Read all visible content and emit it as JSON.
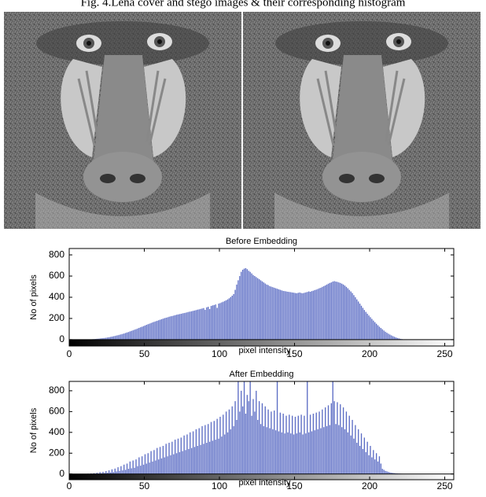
{
  "caption": "Fig. 4.Lena cover and stego images & their corresponding histogram",
  "chart_data": [
    {
      "type": "histogram",
      "title": "Before Embedding",
      "x_label": "pixel intensity",
      "y_label": "No of pixels",
      "color": "#5b6cc4",
      "xlim": [
        0,
        256
      ],
      "ylim": [
        -60,
        860
      ],
      "xticks": [
        0,
        50,
        100,
        150,
        200,
        250
      ],
      "yticks": [
        0,
        200,
        400,
        600,
        800
      ],
      "bins": [
        0,
        1,
        2,
        3,
        4,
        5,
        6,
        7,
        8,
        9,
        10,
        11,
        12,
        13,
        14,
        15,
        16,
        17,
        18,
        19,
        20,
        21,
        22,
        23,
        24,
        25,
        26,
        27,
        28,
        29,
        30,
        31,
        32,
        33,
        34,
        35,
        36,
        37,
        38,
        39,
        40,
        41,
        42,
        43,
        44,
        45,
        46,
        47,
        48,
        49,
        50,
        51,
        52,
        53,
        54,
        55,
        56,
        57,
        58,
        59,
        60,
        61,
        62,
        63,
        64,
        65,
        66,
        67,
        68,
        69,
        70,
        71,
        72,
        73,
        74,
        75,
        76,
        77,
        78,
        79,
        80,
        81,
        82,
        83,
        84,
        85,
        86,
        87,
        88,
        89,
        90,
        91,
        92,
        93,
        94,
        95,
        96,
        97,
        98,
        99,
        100,
        101,
        102,
        103,
        104,
        105,
        106,
        107,
        108,
        109,
        110,
        111,
        112,
        113,
        114,
        115,
        116,
        117,
        118,
        119,
        120,
        121,
        122,
        123,
        124,
        125,
        126,
        127,
        128,
        129,
        130,
        131,
        132,
        133,
        134,
        135,
        136,
        137,
        138,
        139,
        140,
        141,
        142,
        143,
        144,
        145,
        146,
        147,
        148,
        149,
        150,
        151,
        152,
        153,
        154,
        155,
        156,
        157,
        158,
        159,
        160,
        161,
        162,
        163,
        164,
        165,
        166,
        167,
        168,
        169,
        170,
        171,
        172,
        173,
        174,
        175,
        176,
        177,
        178,
        179,
        180,
        181,
        182,
        183,
        184,
        185,
        186,
        187,
        188,
        189,
        190,
        191,
        192,
        193,
        194,
        195,
        196,
        197,
        198,
        199,
        200,
        201,
        202,
        203,
        204,
        205,
        206,
        207,
        208,
        209,
        210,
        211,
        212,
        213,
        214,
        215,
        216,
        217,
        218,
        219,
        220,
        221,
        222,
        223,
        224,
        225,
        226,
        227,
        228,
        229,
        230,
        231,
        232,
        233,
        234,
        235,
        236,
        237,
        238,
        239,
        240,
        241,
        242,
        243,
        244,
        245,
        246,
        247,
        248,
        249,
        250,
        251,
        252,
        253,
        254,
        255,
        256
      ],
      "values": [
        0,
        0,
        0,
        0,
        0,
        0,
        0,
        0,
        0,
        0,
        0,
        1,
        2,
        2,
        3,
        4,
        5,
        6,
        8,
        9,
        11,
        13,
        14,
        16,
        18,
        21,
        23,
        26,
        29,
        32,
        35,
        39,
        42,
        46,
        50,
        54,
        58,
        63,
        68,
        72,
        78,
        83,
        88,
        94,
        99,
        105,
        111,
        117,
        122,
        128,
        134,
        140,
        146,
        151,
        157,
        163,
        168,
        173,
        178,
        183,
        188,
        193,
        198,
        203,
        207,
        211,
        216,
        220,
        223,
        227,
        231,
        235,
        238,
        241,
        244,
        248,
        251,
        254,
        258,
        262,
        265,
        268,
        272,
        275,
        279,
        283,
        286,
        290,
        294,
        298,
        281,
        305,
        310,
        289,
        318,
        323,
        327,
        332,
        300,
        340,
        345,
        352,
        358,
        365,
        372,
        380,
        390,
        402,
        415,
        430,
        470,
        520,
        560,
        600,
        640,
        660,
        670,
        675,
        665,
        650,
        640,
        625,
        610,
        600,
        590,
        580,
        570,
        560,
        550,
        540,
        530,
        520,
        515,
        505,
        500,
        495,
        490,
        485,
        480,
        475,
        470,
        465,
        460,
        458,
        455,
        452,
        450,
        448,
        445,
        443,
        440,
        438,
        442,
        445,
        440,
        438,
        442,
        446,
        450,
        455,
        452,
        458,
        462,
        468,
        472,
        478,
        485,
        490,
        498,
        505,
        512,
        520,
        528,
        535,
        540,
        548,
        552,
        548,
        545,
        540,
        535,
        528,
        520,
        510,
        498,
        485,
        470,
        455,
        440,
        420,
        400,
        380,
        360,
        340,
        320,
        300,
        280,
        262,
        245,
        228,
        212,
        196,
        180,
        165,
        150,
        136,
        122,
        110,
        98,
        86,
        75,
        65,
        56,
        48,
        40,
        33,
        27,
        21,
        16,
        12,
        8,
        5,
        3,
        2,
        1,
        1,
        0,
        0,
        0,
        0,
        0,
        0,
        0,
        0,
        0,
        0,
        0,
        0,
        0,
        0,
        0,
        0,
        0,
        0,
        0,
        0,
        0,
        0,
        0,
        0,
        0,
        0,
        0,
        0,
        0,
        0
      ]
    },
    {
      "type": "histogram",
      "title": "After Embedding",
      "x_label": "pixel intensity",
      "y_label": "No of pixels",
      "color": "#5b6cc4",
      "xlim": [
        0,
        256
      ],
      "ylim": [
        -55,
        890
      ],
      "xticks": [
        0,
        50,
        100,
        150,
        200,
        250
      ],
      "yticks": [
        0,
        200,
        400,
        600,
        800
      ],
      "bins": [
        0,
        1,
        2,
        3,
        4,
        5,
        6,
        7,
        8,
        9,
        10,
        11,
        12,
        13,
        14,
        15,
        16,
        17,
        18,
        19,
        20,
        21,
        22,
        23,
        24,
        25,
        26,
        27,
        28,
        29,
        30,
        31,
        32,
        33,
        34,
        35,
        36,
        37,
        38,
        39,
        40,
        41,
        42,
        43,
        44,
        45,
        46,
        47,
        48,
        49,
        50,
        51,
        52,
        53,
        54,
        55,
        56,
        57,
        58,
        59,
        60,
        61,
        62,
        63,
        64,
        65,
        66,
        67,
        68,
        69,
        70,
        71,
        72,
        73,
        74,
        75,
        76,
        77,
        78,
        79,
        80,
        81,
        82,
        83,
        84,
        85,
        86,
        87,
        88,
        89,
        90,
        91,
        92,
        93,
        94,
        95,
        96,
        97,
        98,
        99,
        100,
        101,
        102,
        103,
        104,
        105,
        106,
        107,
        108,
        109,
        110,
        111,
        112,
        113,
        114,
        115,
        116,
        117,
        118,
        119,
        120,
        121,
        122,
        123,
        124,
        125,
        126,
        127,
        128,
        129,
        130,
        131,
        132,
        133,
        134,
        135,
        136,
        137,
        138,
        139,
        140,
        141,
        142,
        143,
        144,
        145,
        146,
        147,
        148,
        149,
        150,
        151,
        152,
        153,
        154,
        155,
        156,
        157,
        158,
        159,
        160,
        161,
        162,
        163,
        164,
        165,
        166,
        167,
        168,
        169,
        170,
        171,
        172,
        173,
        174,
        175,
        176,
        177,
        178,
        179,
        180,
        181,
        182,
        183,
        184,
        185,
        186,
        187,
        188,
        189,
        190,
        191,
        192,
        193,
        194,
        195,
        196,
        197,
        198,
        199,
        200,
        201,
        202,
        203,
        204,
        205,
        206,
        207,
        208,
        209,
        210,
        211,
        212,
        213,
        214,
        215,
        216,
        217,
        218,
        219,
        220,
        221,
        222,
        223,
        224,
        225,
        226,
        227,
        228,
        229,
        230,
        231,
        232,
        233,
        234,
        235,
        236,
        237,
        238,
        239,
        240,
        241,
        242,
        243,
        244,
        245,
        246,
        247,
        248,
        249,
        250,
        251,
        252,
        253,
        254,
        255,
        256
      ],
      "values": [
        0,
        0,
        0,
        0,
        0,
        0,
        0,
        0,
        0,
        0,
        0,
        0,
        3,
        0,
        5,
        2,
        8,
        3,
        12,
        5,
        18,
        7,
        20,
        10,
        28,
        12,
        35,
        15,
        45,
        18,
        52,
        25,
        65,
        30,
        75,
        35,
        90,
        40,
        100,
        50,
        120,
        55,
        130,
        60,
        140,
        75,
        160,
        80,
        170,
        90,
        190,
        100,
        200,
        110,
        220,
        120,
        230,
        130,
        250,
        140,
        260,
        150,
        270,
        160,
        290,
        170,
        300,
        180,
        310,
        190,
        330,
        200,
        340,
        210,
        350,
        220,
        370,
        230,
        380,
        240,
        400,
        250,
        410,
        260,
        430,
        270,
        440,
        280,
        460,
        290,
        470,
        300,
        480,
        310,
        500,
        320,
        510,
        330,
        530,
        340,
        550,
        360,
        570,
        380,
        600,
        400,
        620,
        430,
        650,
        460,
        700,
        520,
        920,
        600,
        800,
        650,
        920,
        580,
        760,
        700,
        920,
        560,
        720,
        600,
        800,
        520,
        700,
        480,
        680,
        460,
        650,
        450,
        620,
        440,
        600,
        430,
        610,
        420,
        920,
        410,
        590,
        400,
        580,
        390,
        560,
        400,
        570,
        390,
        560,
        380,
        550,
        390,
        560,
        400,
        570,
        380,
        560,
        390,
        920,
        400,
        570,
        410,
        580,
        420,
        590,
        430,
        600,
        440,
        620,
        450,
        640,
        460,
        660,
        470,
        680,
        920,
        700,
        480,
        690,
        470,
        670,
        450,
        640,
        430,
        600,
        400,
        560,
        370,
        520,
        340,
        470,
        300,
        430,
        270,
        390,
        240,
        350,
        210,
        310,
        180,
        270,
        160,
        230,
        140,
        200,
        120,
        170,
        100,
        50,
        40,
        30,
        25,
        20,
        15,
        12,
        10,
        8,
        6,
        5,
        4,
        3,
        2,
        1,
        0,
        0,
        0,
        0,
        0,
        0,
        0,
        0,
        0,
        0,
        0,
        0,
        0,
        0,
        0,
        0,
        0,
        0,
        0,
        0,
        0,
        0,
        0,
        0,
        0,
        0,
        0,
        0,
        0,
        0,
        0,
        0,
        0
      ]
    }
  ]
}
